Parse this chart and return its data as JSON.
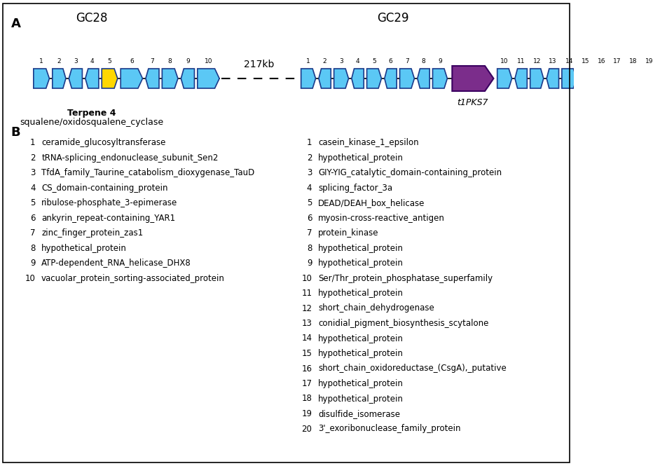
{
  "title_A": "A",
  "title_B": "B",
  "gc28_label": "GC28",
  "gc29_label": "GC29",
  "terpene_label1": "Terpene 4",
  "terpene_label2": "squalene/oxidosqualene_cyclase",
  "t1pks7_label": "t1PKS7",
  "gap_label": "217kb",
  "cyan_color": "#5BC8F5",
  "yellow_color": "#FFD700",
  "purple_color": "#7B2D8B",
  "edge_color": "#1A3A8A",
  "gc28_dirs": [
    1,
    1,
    -1,
    -1,
    1,
    1,
    -1,
    1,
    -1,
    1
  ],
  "gc28_colors": [
    "cyan",
    "cyan",
    "cyan",
    "cyan",
    "yellow",
    "cyan",
    "cyan",
    "cyan",
    "cyan",
    "cyan"
  ],
  "gc29l_dirs": [
    1,
    -1,
    1,
    -1,
    1,
    -1,
    1,
    -1,
    1
  ],
  "gc29r_dirs": [
    1,
    -1,
    1,
    -1,
    1,
    -1,
    1,
    -1,
    1,
    -1,
    1
  ],
  "gc28_nums": [
    "1",
    "2",
    "3",
    "4",
    "5",
    "6",
    "7",
    "8",
    "9",
    "10"
  ],
  "gc29l_nums": [
    "1",
    "2",
    "3",
    "4",
    "5",
    "6",
    "7",
    "8",
    "9"
  ],
  "gc29r_nums": [
    "10",
    "11",
    "12",
    "13",
    "14",
    "15",
    "16",
    "17",
    "18",
    "19",
    "20"
  ],
  "gc28_genes": [
    "ceramide_glucosyltransferase",
    "tRNA-splicing_endonuclease_subunit_Sen2",
    "TfdA_family_Taurine_catabolism_dioxygenase_TauD",
    "CS_domain-containing_protein",
    "ribulose-phosphate_3-epimerase",
    "ankyrin_repeat-containing_YAR1",
    "zinc_finger_protein_zas1",
    "hypothetical_protein",
    "ATP-dependent_RNA_helicase_DHX8",
    "vacuolar_protein_sorting-associated_protein"
  ],
  "gc29_genes": [
    "casein_kinase_1_epsilon",
    "hypothetical_protein",
    "GIY-YIG_catalytic_domain-containing_protein",
    "splicing_factor_3a",
    "DEAD/DEAH_box_helicase",
    "myosin-cross-reactive_antigen",
    "protein_kinase",
    "hypothetical_protein",
    "hypothetical_protein",
    "Ser/Thr_protein_phosphatase_superfamily",
    "hypothetical_protein",
    "short_chain_dehydrogenase",
    "conidial_pigment_biosynthesis_scytalone",
    "hypothetical_protein",
    "hypothetical_protein",
    "short_chain_oxidoreductase_(CsgA),_putative",
    "hypothetical_protein",
    "hypothetical_protein",
    "disulfide_isomerase",
    "3'_exoribonuclease_family_protein"
  ]
}
